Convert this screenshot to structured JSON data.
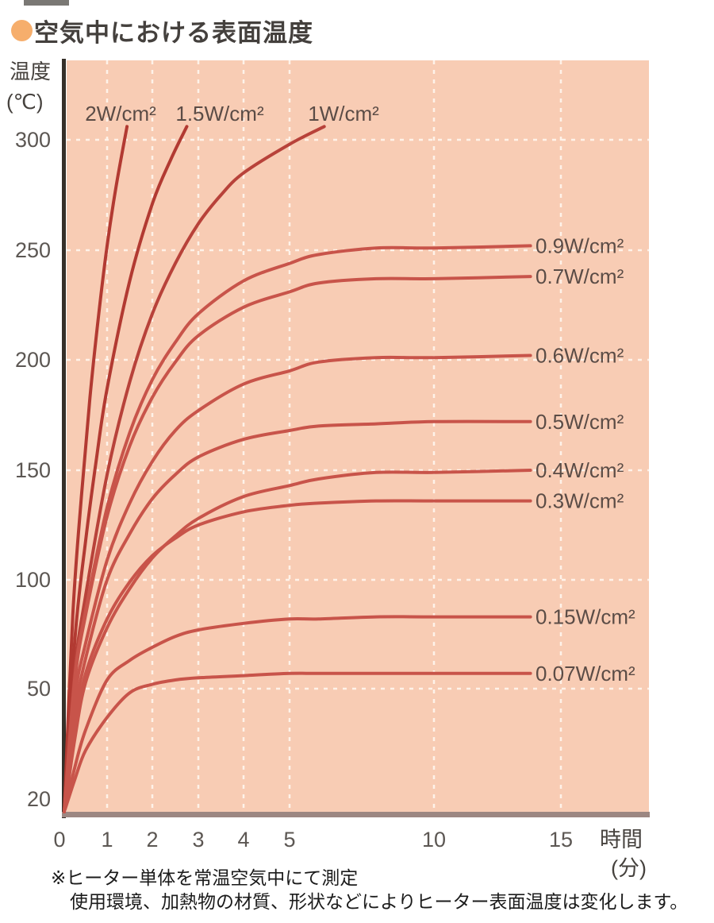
{
  "title": {
    "text": "空気中における表面温度"
  },
  "footnotes": [
    "※ヒーター単体を常温空気中にて測定",
    "使用環境、加熱物の材質、形状などによりヒーター表面温度は変化します。"
  ],
  "chart_data": {
    "type": "line",
    "title": "空気中における表面温度",
    "xlabel": "時間",
    "xunit": "(分)",
    "ylabel": "温度",
    "yunit": "(℃)",
    "x_ticks": [
      0,
      1,
      2,
      3,
      4,
      5,
      10,
      15
    ],
    "y_ticks": [
      20,
      50,
      100,
      150,
      200,
      250,
      300
    ],
    "xlim": [
      0,
      15
    ],
    "ylim": [
      20,
      310
    ],
    "x_axis_scale": "compressed after 5 minutes",
    "grid": "white dashed, at every labeled tick",
    "plot_bg_color": "#f8ccb4",
    "grid_color": "#fff5ec",
    "y_axis_color": "#363029",
    "x_axis_color": "#9c8782",
    "legend_position": "labels at curve ends",
    "series": [
      {
        "label": "2W/cm²",
        "power_w_per_cm2": 2,
        "color": "#b23a32",
        "label_side": "top",
        "points": [
          [
            0,
            20
          ],
          [
            0.2,
            84
          ],
          [
            0.4,
            138
          ],
          [
            0.6,
            183
          ],
          [
            0.8,
            220
          ],
          [
            1.0,
            252
          ],
          [
            1.2,
            279
          ],
          [
            1.44,
            306
          ]
        ]
      },
      {
        "label": "1.5W/cm²",
        "power_w_per_cm2": 1.5,
        "color": "#b23a32",
        "label_side": "top",
        "points": [
          [
            0,
            20
          ],
          [
            0.25,
            73
          ],
          [
            0.5,
            118
          ],
          [
            0.75,
            155
          ],
          [
            1,
            187
          ],
          [
            1.5,
            236
          ],
          [
            2,
            271
          ],
          [
            2.4,
            291
          ],
          [
            2.75,
            306
          ]
        ]
      },
      {
        "label": "1W/cm²",
        "power_w_per_cm2": 1,
        "color": "#b8423a",
        "label_side": "top",
        "points": [
          [
            0,
            20
          ],
          [
            0.25,
            59
          ],
          [
            0.5,
            93
          ],
          [
            1,
            148
          ],
          [
            1.5,
            190
          ],
          [
            2,
            221
          ],
          [
            2.5,
            244
          ],
          [
            3,
            262
          ],
          [
            3.5,
            275
          ],
          [
            4,
            285
          ],
          [
            5,
            298
          ],
          [
            6.2,
            306
          ]
        ]
      },
      {
        "label": "0.9W/cm²",
        "power_w_per_cm2": 0.9,
        "color": "#c8544a",
        "label_side": "right",
        "points": [
          [
            0,
            20
          ],
          [
            0.25,
            56
          ],
          [
            0.5,
            86
          ],
          [
            1,
            133
          ],
          [
            1.5,
            167
          ],
          [
            2,
            191
          ],
          [
            2.5,
            208
          ],
          [
            3,
            221
          ],
          [
            4,
            236
          ],
          [
            5,
            244
          ],
          [
            6,
            248
          ],
          [
            8,
            251
          ],
          [
            10,
            251
          ],
          [
            13.8,
            252
          ]
        ]
      },
      {
        "label": "0.7W/cm²",
        "power_w_per_cm2": 0.7,
        "color": "#c8544a",
        "label_side": "right",
        "points": [
          [
            0,
            20
          ],
          [
            0.25,
            54
          ],
          [
            0.5,
            84
          ],
          [
            1,
            129
          ],
          [
            1.5,
            161
          ],
          [
            2,
            183
          ],
          [
            2.5,
            199
          ],
          [
            3,
            211
          ],
          [
            4,
            224
          ],
          [
            5,
            231
          ],
          [
            6,
            235
          ],
          [
            8,
            237
          ],
          [
            10,
            237
          ],
          [
            13.8,
            238
          ]
        ]
      },
      {
        "label": "0.6W/cm²",
        "power_w_per_cm2": 0.6,
        "color": "#c8544a",
        "label_side": "right",
        "points": [
          [
            0,
            20
          ],
          [
            0.25,
            48
          ],
          [
            0.5,
            71
          ],
          [
            1,
            109
          ],
          [
            1.5,
            135
          ],
          [
            2,
            154
          ],
          [
            2.5,
            168
          ],
          [
            3,
            177
          ],
          [
            4,
            189
          ],
          [
            5,
            195
          ],
          [
            6,
            199
          ],
          [
            8,
            201
          ],
          [
            10,
            201
          ],
          [
            13.8,
            202
          ]
        ]
      },
      {
        "label": "0.5W/cm²",
        "power_w_per_cm2": 0.5,
        "color": "#c8544a",
        "label_side": "right",
        "points": [
          [
            0,
            20
          ],
          [
            0.25,
            44
          ],
          [
            0.5,
            64
          ],
          [
            1,
            100
          ],
          [
            1.5,
            121
          ],
          [
            2,
            137
          ],
          [
            2.5,
            148
          ],
          [
            3,
            156
          ],
          [
            4,
            164
          ],
          [
            5,
            168
          ],
          [
            6,
            170
          ],
          [
            8,
            171
          ],
          [
            10,
            172
          ],
          [
            13.8,
            172
          ]
        ]
      },
      {
        "label": "0.4W/cm²",
        "power_w_per_cm2": 0.4,
        "color": "#c8544a",
        "label_side": "right",
        "points": [
          [
            0,
            20
          ],
          [
            0.25,
            38
          ],
          [
            0.5,
            53
          ],
          [
            1,
            78
          ],
          [
            1.5,
            96
          ],
          [
            2,
            110
          ],
          [
            2.5,
            120
          ],
          [
            3,
            128
          ],
          [
            4,
            138
          ],
          [
            5,
            143
          ],
          [
            6,
            146
          ],
          [
            8,
            149
          ],
          [
            10,
            149
          ],
          [
            13.8,
            150
          ]
        ]
      },
      {
        "label": "0.3W/cm²",
        "power_w_per_cm2": 0.3,
        "color": "#c8544a",
        "label_side": "right",
        "points": [
          [
            0,
            20
          ],
          [
            0.25,
            40
          ],
          [
            0.5,
            57
          ],
          [
            1,
            82
          ],
          [
            1.5,
            99
          ],
          [
            2,
            111
          ],
          [
            2.5,
            119
          ],
          [
            3,
            125
          ],
          [
            4,
            131
          ],
          [
            5,
            134
          ],
          [
            6,
            135
          ],
          [
            8,
            136
          ],
          [
            10,
            136
          ],
          [
            13.8,
            136
          ]
        ]
      },
      {
        "label": "0.15W/cm²",
        "power_w_per_cm2": 0.15,
        "color": "#c8544a",
        "label_side": "right",
        "points": [
          [
            0,
            20
          ],
          [
            0.25,
            31
          ],
          [
            0.5,
            40
          ],
          [
            1,
            54
          ],
          [
            1.5,
            63
          ],
          [
            2,
            69
          ],
          [
            2.5,
            74
          ],
          [
            3,
            77
          ],
          [
            4,
            80
          ],
          [
            5,
            82
          ],
          [
            6,
            82
          ],
          [
            8,
            83
          ],
          [
            10,
            83
          ],
          [
            13.8,
            83
          ]
        ]
      },
      {
        "label": "0.07W/cm²",
        "power_w_per_cm2": 0.07,
        "color": "#c8544a",
        "label_side": "right",
        "points": [
          [
            0,
            20
          ],
          [
            0.25,
            28
          ],
          [
            0.5,
            35
          ],
          [
            1,
            43
          ],
          [
            1.5,
            49
          ],
          [
            2,
            52
          ],
          [
            2.5,
            54
          ],
          [
            3,
            55
          ],
          [
            4,
            56
          ],
          [
            5,
            57
          ],
          [
            6,
            57
          ],
          [
            8,
            57
          ],
          [
            10,
            57
          ],
          [
            13.8,
            57
          ]
        ]
      }
    ]
  }
}
